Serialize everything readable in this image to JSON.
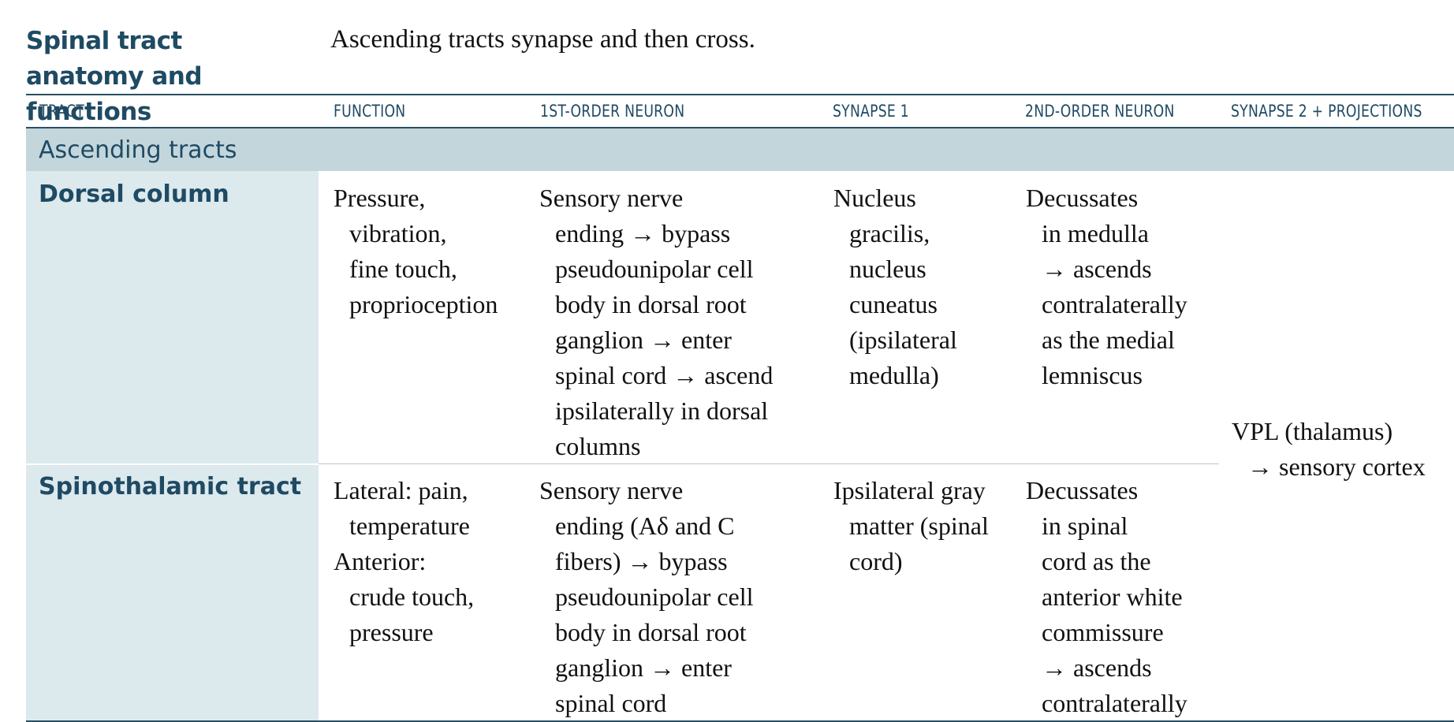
{
  "title": "Spinal tract anatomy and functions",
  "subtitle": "Ascending tracts synapse and then cross.",
  "columns": {
    "tract": "TRACT",
    "function": "FUNCTION",
    "first_order": "1ST-ORDER NEURON",
    "synapse1": "SYNAPSE 1",
    "second_order": "2ND-ORDER NEURON",
    "synapse2": "SYNAPSE 2 + PROJECTIONS"
  },
  "section": "Ascending tracts",
  "rows": [
    {
      "tract": "Dorsal column",
      "function": [
        "Pressure,",
        "vibration,",
        "fine touch,",
        "proprioception"
      ],
      "first_order": [
        "Sensory nerve",
        "ending → bypass",
        "pseudounipolar cell",
        "body in dorsal root",
        "ganglion → enter",
        "spinal cord → ascend",
        "ipsilaterally in dorsal",
        "columns"
      ],
      "synapse1": [
        "Nucleus",
        "gracilis,",
        "nucleus",
        "cuneatus",
        "(ipsilateral",
        "medulla)"
      ],
      "second_order": [
        "Decussates",
        "in medulla",
        "→ ascends",
        "contralaterally",
        "as the medial",
        "lemniscus"
      ]
    },
    {
      "tract": "Spinothalamic tract",
      "function": [
        "Lateral: pain,",
        "temperature",
        "Anterior:",
        "crude touch,",
        "pressure"
      ],
      "first_order": [
        "Sensory nerve",
        "ending (Aδ and C",
        "fibers) → bypass",
        "pseudounipolar cell",
        "body in dorsal root",
        "ganglion → enter",
        "spinal cord"
      ],
      "synapse1": [
        "Ipsilateral gray",
        "matter (spinal",
        "cord)"
      ],
      "second_order": [
        "Decussates",
        "in spinal",
        "cord as the",
        "anterior white",
        "commissure",
        "→ ascends",
        "contralaterally"
      ]
    }
  ],
  "shared_synapse2": [
    "VPL (thalamus)",
    "→ sensory cortex"
  ]
}
